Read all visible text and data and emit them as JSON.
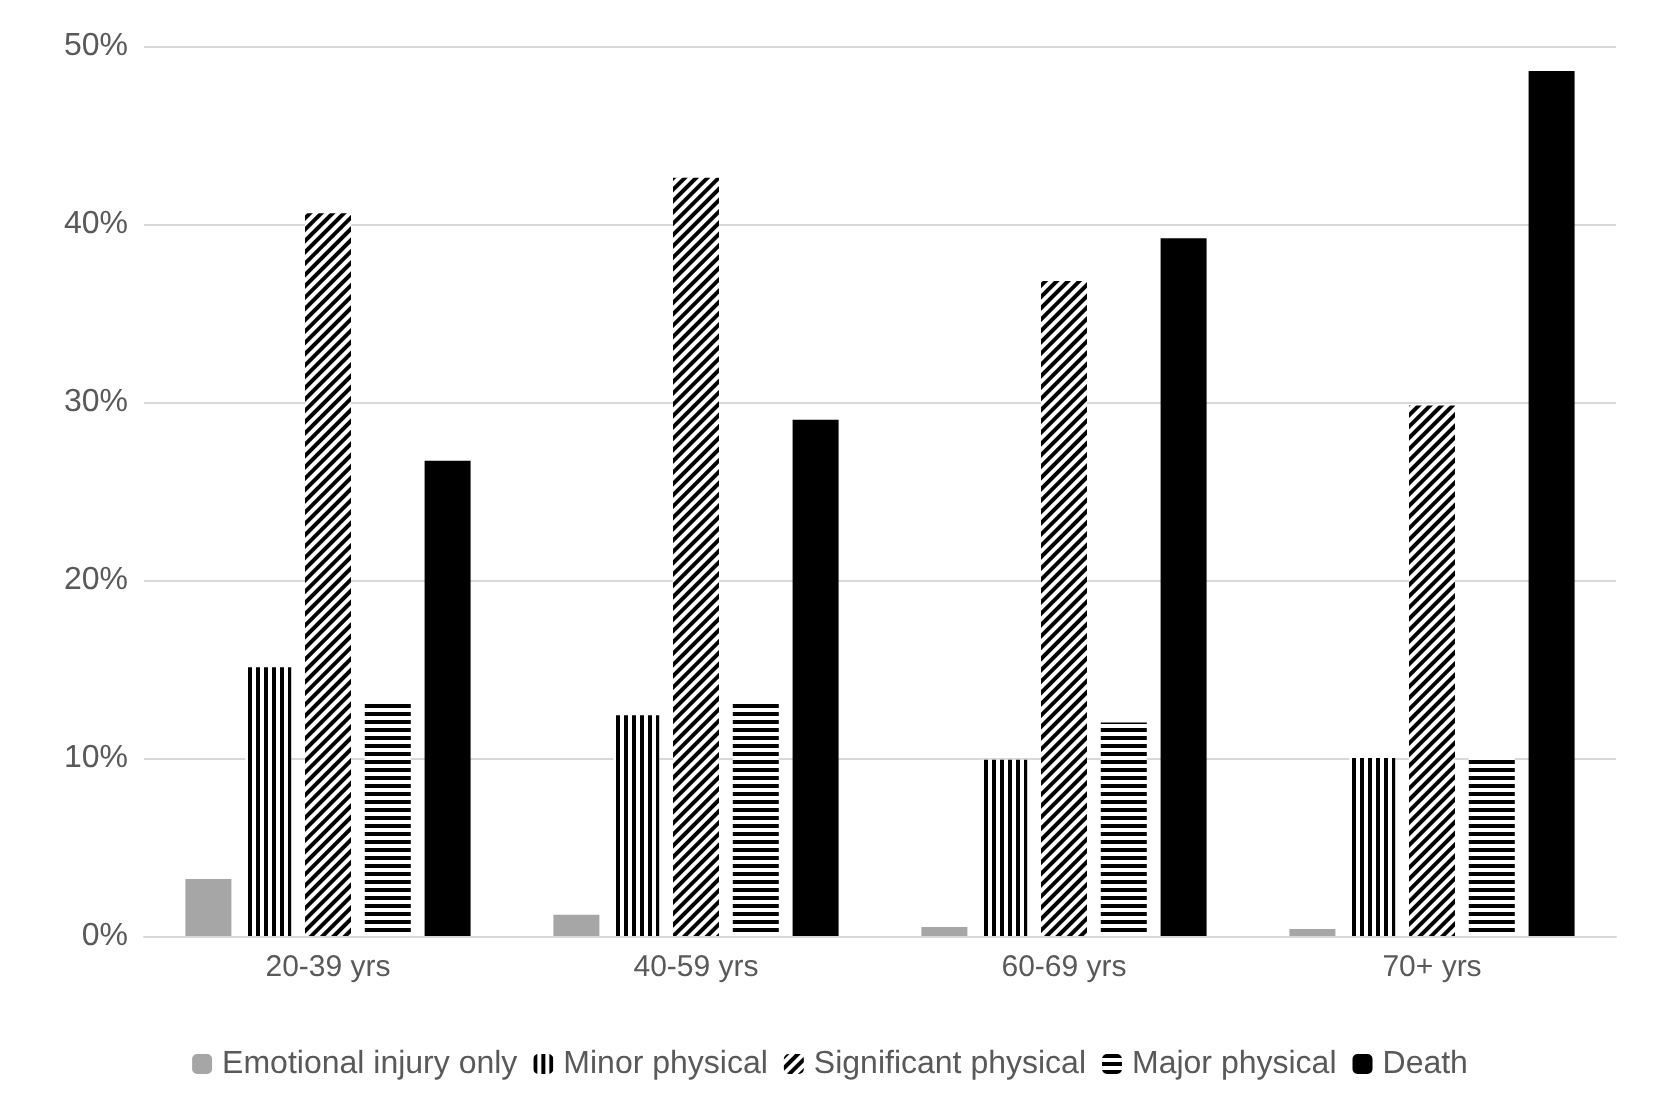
{
  "chart_data": {
    "type": "bar",
    "categories": [
      "20-39 yrs",
      "40-59 yrs",
      "60-69 yrs",
      "70+ yrs"
    ],
    "series": [
      {
        "name": "Emotional injury only",
        "color": "#a6a6a6",
        "values": [
          3.2,
          1.2,
          0.5,
          0.4
        ]
      },
      {
        "name": "Minor physical",
        "color": "#000000",
        "values": [
          15.1,
          12.4,
          9.9,
          10.0
        ]
      },
      {
        "name": "Significant physical",
        "color": "#000000",
        "values": [
          40.6,
          42.6,
          36.8,
          29.8
        ]
      },
      {
        "name": "Major physical",
        "color": "#000000",
        "values": [
          13.2,
          13.2,
          12.0,
          10.1
        ]
      },
      {
        "name": "Death",
        "color": "#000000",
        "values": [
          26.7,
          29.0,
          39.2,
          48.6
        ]
      }
    ],
    "ylim": [
      0,
      50
    ],
    "yticks": [
      {
        "value": 0,
        "label": "0%"
      },
      {
        "value": 10,
        "label": "10%"
      },
      {
        "value": 20,
        "label": "20%"
      },
      {
        "value": 30,
        "label": "30%"
      },
      {
        "value": 40,
        "label": "40%"
      },
      {
        "value": 50,
        "label": "50%"
      }
    ],
    "grid": "y",
    "legend": "bottom"
  }
}
